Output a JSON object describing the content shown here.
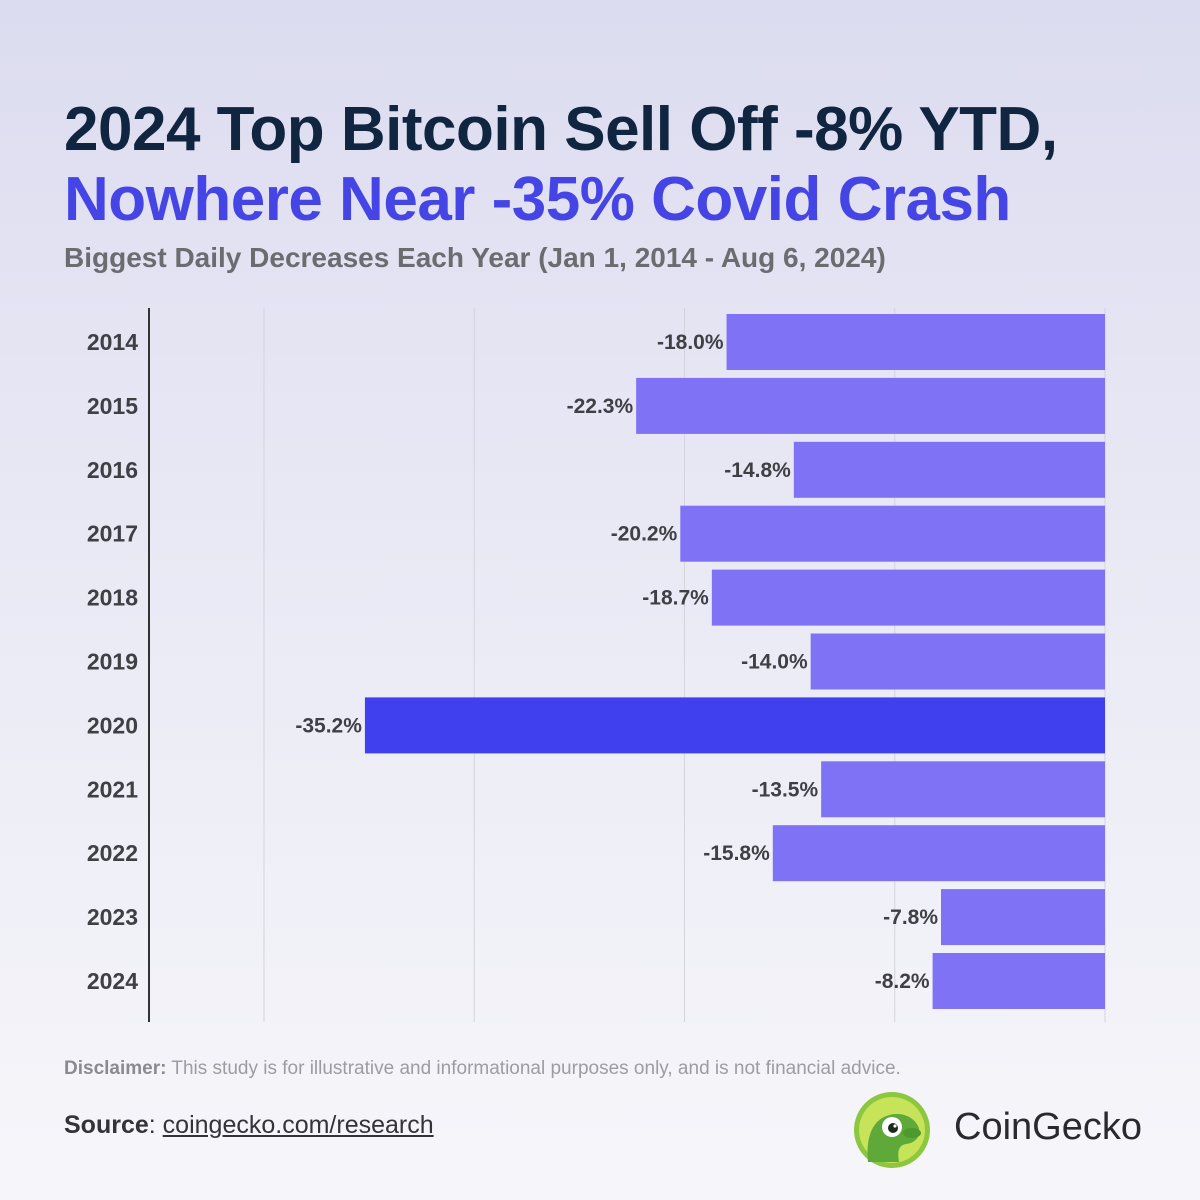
{
  "header": {
    "title_line1": "2024 Top Bitcoin Sell Off -8% YTD,",
    "title_line2": "Nowhere Near -35% Covid Crash",
    "subtitle": "Biggest Daily Decreases Each Year (Jan 1, 2014 - Aug 6, 2024)"
  },
  "chart_data": {
    "type": "bar",
    "orientation": "horizontal",
    "title": "2024 Top Bitcoin Sell Off -8% YTD, Nowhere Near -35% Covid Crash",
    "subtitle": "Biggest Daily Decreases Each Year (Jan 1, 2014 - Aug 6, 2024)",
    "xlabel": "",
    "ylabel": "",
    "xlim": [
      -45,
      0
    ],
    "grid": true,
    "categories": [
      "2014",
      "2015",
      "2016",
      "2017",
      "2018",
      "2019",
      "2020",
      "2021",
      "2022",
      "2023",
      "2024"
    ],
    "values": [
      -18.0,
      -22.3,
      -14.8,
      -20.2,
      -18.7,
      -14.0,
      -35.2,
      -13.5,
      -15.8,
      -7.8,
      -8.2
    ],
    "value_labels": [
      "-18.0%",
      "-22.3%",
      "-14.8%",
      "-20.2%",
      "-18.7%",
      "-14.0%",
      "-35.2%",
      "-13.5%",
      "-15.8%",
      "-7.8%",
      "-8.2%"
    ],
    "highlight_category": "2020",
    "colors": {
      "bar": "#7f72f4",
      "highlight": "#4040ee",
      "grid": "#d4d4de",
      "axis": "#333333"
    }
  },
  "footer": {
    "disclaimer_label": "Disclaimer:",
    "disclaimer_text": " This study is for illustrative and informational purposes only, and is not financial advice.",
    "source_label": "Source",
    "source_sep": ": ",
    "source_link": "coingecko.com/research"
  },
  "brand": {
    "name": "CoinGecko",
    "logo_icon": "coingecko-gecko-icon"
  }
}
